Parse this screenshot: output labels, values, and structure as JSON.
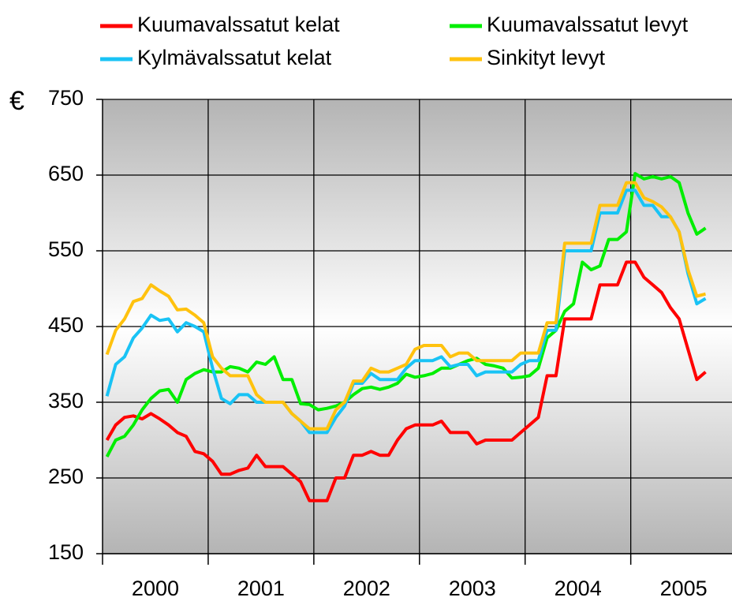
{
  "chart_data": {
    "type": "line",
    "y_label": "€",
    "x": [
      0,
      1,
      2,
      3,
      4,
      5,
      6,
      7,
      8,
      9,
      10,
      11,
      12,
      13,
      14,
      15,
      16,
      17,
      18,
      19,
      20,
      21,
      22,
      23,
      24,
      25,
      26,
      27,
      28,
      29,
      30,
      31,
      32,
      33,
      34,
      35,
      36,
      37,
      38,
      39,
      40,
      41,
      42,
      43,
      44,
      45,
      46,
      47,
      48,
      49,
      50,
      51,
      52,
      53,
      54,
      55,
      56,
      57,
      58,
      59,
      60,
      61,
      62,
      63,
      64,
      65,
      66,
      67,
      68
    ],
    "xlim": [
      -0.5,
      71
    ],
    "xticks": [
      {
        "value": 5.5,
        "label": "2000"
      },
      {
        "value": 17.5,
        "label": "2001"
      },
      {
        "value": 29.5,
        "label": "2002"
      },
      {
        "value": 41.5,
        "label": "2003"
      },
      {
        "value": 53.5,
        "label": "2004"
      },
      {
        "value": 65.5,
        "label": "2005"
      }
    ],
    "ylim": [
      150,
      750
    ],
    "yticks": [
      150,
      250,
      350,
      450,
      550,
      650,
      750
    ],
    "grid": true,
    "legend": "top",
    "series": [
      {
        "name": "Kuumavalssatut kelat",
        "color": "#ff0000",
        "values": [
          300,
          320,
          330,
          332,
          328,
          335,
          328,
          320,
          310,
          305,
          285,
          282,
          272,
          255,
          255,
          260,
          263,
          280,
          265,
          265,
          265,
          255,
          245,
          220,
          220,
          220,
          250,
          250,
          280,
          280,
          285,
          280,
          280,
          300,
          315,
          320,
          320,
          320,
          325,
          310,
          310,
          310,
          295,
          300,
          300,
          300,
          300,
          310,
          320,
          330,
          385,
          385,
          460,
          460,
          460,
          460,
          505,
          505,
          505,
          535,
          535,
          515,
          505,
          495,
          475,
          460,
          420,
          380,
          390
        ]
      },
      {
        "name": "Kuumavalssatut levyt",
        "color": "#00ee00",
        "values": [
          278,
          300,
          305,
          320,
          340,
          355,
          365,
          367,
          350,
          380,
          388,
          393,
          390,
          390,
          397,
          395,
          390,
          403,
          400,
          410,
          380,
          380,
          348,
          347,
          340,
          342,
          345,
          350,
          360,
          368,
          370,
          367,
          370,
          375,
          387,
          383,
          385,
          388,
          395,
          395,
          400,
          405,
          408,
          400,
          398,
          395,
          382,
          383,
          385,
          395,
          435,
          445,
          470,
          480,
          535,
          525,
          530,
          565,
          565,
          575,
          652,
          645,
          648,
          645,
          648,
          640,
          600,
          572,
          580
        ]
      },
      {
        "name": "Kylmävalssatut kelat",
        "color": "#19c3f5",
        "values": [
          358,
          400,
          410,
          435,
          448,
          465,
          458,
          460,
          443,
          455,
          450,
          443,
          395,
          355,
          348,
          360,
          360,
          350,
          350,
          350,
          350,
          335,
          325,
          310,
          310,
          310,
          330,
          345,
          375,
          375,
          388,
          380,
          380,
          380,
          395,
          405,
          405,
          405,
          410,
          397,
          400,
          400,
          385,
          390,
          390,
          390,
          390,
          400,
          405,
          405,
          445,
          445,
          550,
          550,
          550,
          550,
          600,
          600,
          600,
          630,
          630,
          610,
          610,
          595,
          595,
          575,
          520,
          480,
          487
        ]
      },
      {
        "name": "Sinkityt levyt",
        "color": "#ffc20e",
        "values": [
          413,
          445,
          460,
          483,
          487,
          505,
          497,
          490,
          472,
          473,
          465,
          455,
          410,
          395,
          385,
          385,
          385,
          360,
          350,
          350,
          350,
          335,
          325,
          315,
          315,
          315,
          340,
          350,
          378,
          378,
          395,
          390,
          390,
          395,
          400,
          420,
          425,
          425,
          425,
          410,
          415,
          415,
          405,
          405,
          405,
          405,
          405,
          415,
          415,
          415,
          455,
          455,
          560,
          560,
          560,
          560,
          610,
          610,
          610,
          640,
          640,
          620,
          615,
          608,
          595,
          575,
          525,
          490,
          493
        ]
      }
    ]
  }
}
